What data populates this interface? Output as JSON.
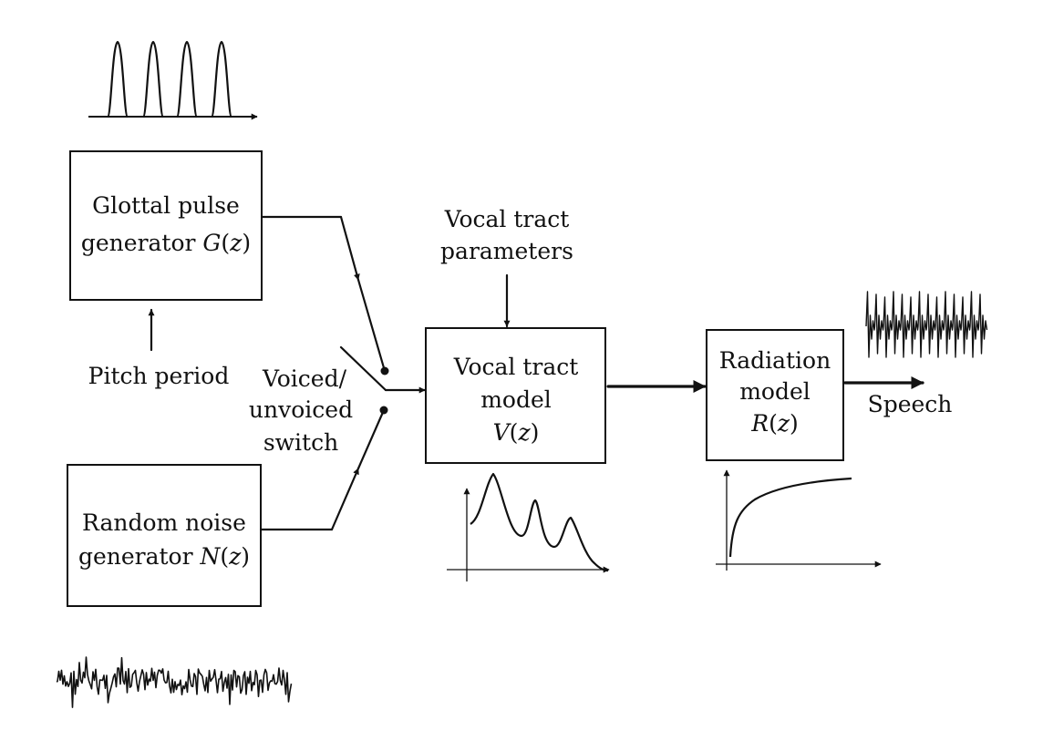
{
  "blocks": {
    "glottal": {
      "line1": "Glottal pulse",
      "line2_text": "generator ",
      "fn": "G",
      "var": "z"
    },
    "noise": {
      "line1": "Random noise",
      "line2_text": "generator ",
      "fn": "N",
      "var": "z"
    },
    "vocal_tract": {
      "line1": "Vocal tract",
      "line2": "model",
      "fn": "V",
      "var": "z"
    },
    "radiation": {
      "line1": "Radiation",
      "line2": "model",
      "fn": "R",
      "var": "z"
    }
  },
  "labels": {
    "pitch_period": "Pitch period",
    "switch_line1": "Voiced/",
    "switch_line2": "unvoiced",
    "switch_line3": "switch",
    "params_line1": "Vocal tract",
    "params_line2": "parameters",
    "output": "Speech"
  },
  "colors": {
    "ink": "#111111",
    "background": "#ffffff"
  }
}
